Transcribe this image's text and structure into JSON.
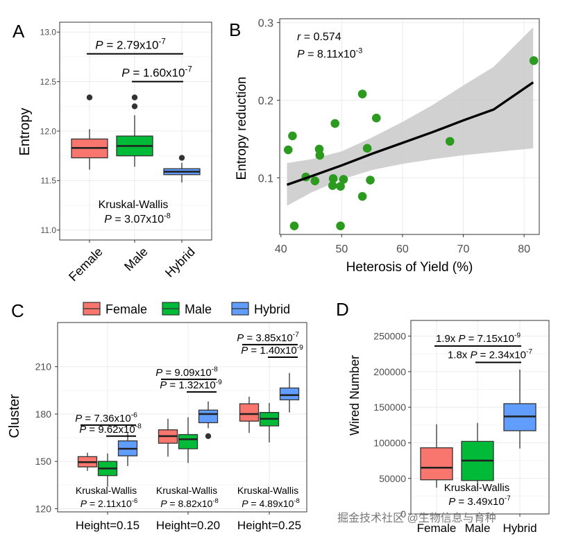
{
  "chart_data": [
    {
      "panel": "A",
      "type": "box",
      "panel_label": "A",
      "ylabel": "Entropy",
      "ylim": [
        10.9,
        13.1
      ],
      "yticks": [
        {
          "value": 11.0,
          "label": "11.0"
        },
        {
          "value": 11.5,
          "label": "11.5"
        },
        {
          "value": 12.0,
          "label": "12.0"
        },
        {
          "value": 12.5,
          "label": "12.5"
        },
        {
          "value": 13.0,
          "label": "13.0"
        }
      ],
      "colors": [
        "#f8766d",
        "#00ba38",
        "#619cff"
      ],
      "groups": [
        {
          "name": "Female",
          "min": 11.61,
          "q1": 11.73,
          "median": 11.83,
          "q3": 11.92,
          "max": 12.02,
          "outliers": [
            12.34
          ]
        },
        {
          "name": "Male",
          "min": 11.64,
          "q1": 11.75,
          "median": 11.85,
          "q3": 11.95,
          "max": 12.16,
          "outliers": [
            12.25,
            12.34
          ]
        },
        {
          "name": "Hybrid",
          "min": 11.48,
          "q1": 11.56,
          "median": 11.59,
          "q3": 11.62,
          "max": 11.68,
          "outliers": [
            11.73
          ]
        }
      ],
      "brackets": [
        {
          "from": 0,
          "to": 2,
          "y": 12.78,
          "prefix": "P = ",
          "value": "2.79x10",
          "exponent": "-7"
        },
        {
          "from": 1,
          "to": 2,
          "y": 12.5,
          "prefix": "P = ",
          "value": "1.60x10",
          "exponent": "-7"
        }
      ],
      "test": {
        "name": "Kruskal-Wallis",
        "prefix": "P = ",
        "value": "3.07x10",
        "exponent": "-8"
      }
    },
    {
      "panel": "B",
      "type": "scatter",
      "panel_label": "B",
      "xlabel": "Heterosis of Yield (%)",
      "ylabel": "Entropy reduction",
      "xlim": [
        39.8,
        82.5
      ],
      "ylim": [
        0.027,
        0.305
      ],
      "xticks": [
        {
          "value": 40,
          "label": "40"
        },
        {
          "value": 50,
          "label": "50"
        },
        {
          "value": 60,
          "label": "60"
        },
        {
          "value": 70,
          "label": "70"
        },
        {
          "value": 80,
          "label": "80"
        }
      ],
      "yticks": [
        {
          "value": 0.1,
          "label": "0.1"
        },
        {
          "value": 0.2,
          "label": "0.2"
        },
        {
          "value": 0.3,
          "label": "0.3"
        }
      ],
      "point_color": "#2c9a1e",
      "line_color": "#000000",
      "band_color": "#c9c9c9",
      "points": [
        {
          "x": 41.2,
          "y": 0.136
        },
        {
          "x": 41.9,
          "y": 0.154
        },
        {
          "x": 42.2,
          "y": 0.038
        },
        {
          "x": 44.1,
          "y": 0.101
        },
        {
          "x": 45.6,
          "y": 0.096
        },
        {
          "x": 46.3,
          "y": 0.137
        },
        {
          "x": 46.4,
          "y": 0.129
        },
        {
          "x": 48.5,
          "y": 0.09
        },
        {
          "x": 48.6,
          "y": 0.099
        },
        {
          "x": 48.9,
          "y": 0.17
        },
        {
          "x": 49.8,
          "y": 0.089
        },
        {
          "x": 49.8,
          "y": 0.038
        },
        {
          "x": 50.3,
          "y": 0.098
        },
        {
          "x": 53.4,
          "y": 0.076
        },
        {
          "x": 53.4,
          "y": 0.208
        },
        {
          "x": 54.2,
          "y": 0.138
        },
        {
          "x": 54.7,
          "y": 0.097
        },
        {
          "x": 55.7,
          "y": 0.177
        },
        {
          "x": 67.8,
          "y": 0.147
        },
        {
          "x": 81.6,
          "y": 0.251
        }
      ],
      "fit": {
        "x": [
          41.0,
          45.0,
          50.0,
          55.0,
          60.0,
          65.0,
          70.0,
          75.0,
          81.5
        ],
        "y": [
          0.091,
          0.102,
          0.116,
          0.131,
          0.145,
          0.159,
          0.174,
          0.188,
          0.223
        ],
        "lower": [
          0.064,
          0.081,
          0.098,
          0.11,
          0.118,
          0.124,
          0.129,
          0.133,
          0.138
        ],
        "upper": [
          0.119,
          0.124,
          0.134,
          0.152,
          0.172,
          0.194,
          0.219,
          0.243,
          0.294
        ]
      },
      "stats": {
        "r_label": "r",
        "r_value": " = 0.574",
        "p_label": "P",
        "p_value": " = 8.11x10",
        "p_exponent": "-3"
      }
    },
    {
      "panel": "C",
      "type": "grouped-box",
      "panel_label": "C",
      "ylabel": "Cluster",
      "ylim": [
        118,
        238
      ],
      "yticks": [
        {
          "value": 120,
          "label": "120"
        },
        {
          "value": 150,
          "label": "150"
        },
        {
          "value": 180,
          "label": "180"
        },
        {
          "value": 210,
          "label": "210"
        }
      ],
      "legend": [
        {
          "name": "Female",
          "color": "#f8766d"
        },
        {
          "name": "Male",
          "color": "#00ba38"
        },
        {
          "name": "Hybrid",
          "color": "#619cff"
        }
      ],
      "categories": [
        {
          "name": "Height=0.15",
          "boxes": [
            {
              "min": 144,
              "q1": 146.5,
              "median": 149.5,
              "q3": 153,
              "max": 155.5,
              "outliers": []
            },
            {
              "min": 134,
              "q1": 141,
              "median": 145.5,
              "q3": 150,
              "max": 155,
              "outliers": []
            },
            {
              "min": 147,
              "q1": 153.5,
              "median": 158,
              "q3": 163,
              "max": 168,
              "outliers": []
            }
          ],
          "brackets": [
            {
              "from": 0,
              "to": 2,
              "y": 173,
              "prefix": "P = ",
              "value": "7.36x10",
              "exponent": "-6"
            },
            {
              "from": 1,
              "to": 2,
              "y": 166,
              "prefix": "P = ",
              "value": "9.62x10",
              "exponent": "-8"
            }
          ],
          "test": {
            "name": "Kruskal-Wallis",
            "prefix": "P = ",
            "value": "2.11x10",
            "exponent": "-6"
          }
        },
        {
          "name": "Height=0.20",
          "boxes": [
            {
              "min": 153,
              "q1": 161.5,
              "median": 166,
              "q3": 170,
              "max": 177,
              "outliers": []
            },
            {
              "min": 149,
              "q1": 158,
              "median": 164,
              "q3": 167,
              "max": 178,
              "outliers": []
            },
            {
              "min": 171,
              "q1": 174.5,
              "median": 180,
              "q3": 182.5,
              "max": 188,
              "outliers": [
                166
              ]
            }
          ],
          "brackets": [
            {
              "from": 0,
              "to": 2,
              "y": 202,
              "prefix": "P = ",
              "value": "9.09x10",
              "exponent": "-8"
            },
            {
              "from": 1,
              "to": 2,
              "y": 194,
              "prefix": "P = ",
              "value": "1.32x10",
              "exponent": "-9"
            }
          ],
          "test": {
            "name": "Kruskal-Wallis",
            "prefix": "P = ",
            "value": "8.82x10",
            "exponent": "-8"
          }
        },
        {
          "name": "Height=0.25",
          "boxes": [
            {
              "min": 168,
              "q1": 175.5,
              "median": 180,
              "q3": 186.5,
              "max": 191,
              "outliers": []
            },
            {
              "min": 162,
              "q1": 172.5,
              "median": 177,
              "q3": 181,
              "max": 187,
              "outliers": []
            },
            {
              "min": 181,
              "q1": 189,
              "median": 192,
              "q3": 196.5,
              "max": 206,
              "outliers": []
            }
          ],
          "brackets": [
            {
              "from": 0,
              "to": 2,
              "y": 224,
              "prefix": "P = ",
              "value": "3.85x10",
              "exponent": "-7"
            },
            {
              "from": 1,
              "to": 2,
              "y": 216,
              "prefix": "P = ",
              "value": "1.40x10",
              "exponent": "-9"
            }
          ],
          "test": {
            "name": "Kruskal-Wallis",
            "prefix": "P = ",
            "value": "4.89x10",
            "exponent": "-8"
          }
        }
      ]
    },
    {
      "panel": "D",
      "type": "box",
      "panel_label": "D",
      "ylabel": "Wired Number",
      "ylim": [
        0,
        272000
      ],
      "yticks": [
        {
          "value": 0,
          "label": "0"
        },
        {
          "value": 50000,
          "label": "50000"
        },
        {
          "value": 100000,
          "label": "100000"
        },
        {
          "value": 150000,
          "label": "150000"
        },
        {
          "value": 200000,
          "label": "200000"
        },
        {
          "value": 250000,
          "label": "250000"
        }
      ],
      "colors": [
        "#f8766d",
        "#00ba38",
        "#619cff"
      ],
      "groups": [
        {
          "name": "Female",
          "min": 37000,
          "q1": 48000,
          "median": 65000,
          "q3": 93000,
          "max": 126000,
          "outliers": []
        },
        {
          "name": "Male",
          "min": 35000,
          "q1": 47000,
          "median": 75000,
          "q3": 102000,
          "max": 128000,
          "outliers": []
        },
        {
          "name": "Hybrid",
          "min": 92000,
          "q1": 117000,
          "median": 137000,
          "q3": 155000,
          "max": 203000,
          "outliers": []
        }
      ],
      "brackets": [
        {
          "from": 0,
          "to": 2,
          "y": 236000,
          "prefix": "1.9x ",
          "italic": "P",
          "value": " = 7.15x10",
          "exponent": "-9"
        },
        {
          "from": 1,
          "to": 2,
          "y": 213000,
          "prefix": "1.8x ",
          "italic": "P",
          "value": " = 2.34x10",
          "exponent": "-7"
        }
      ],
      "test": {
        "name": "Kruskal-Wallis",
        "prefix": "P = ",
        "value": "3.49x10",
        "exponent": "-7"
      }
    }
  ],
  "watermark": "掘金技术社区 @生物信息与育种"
}
